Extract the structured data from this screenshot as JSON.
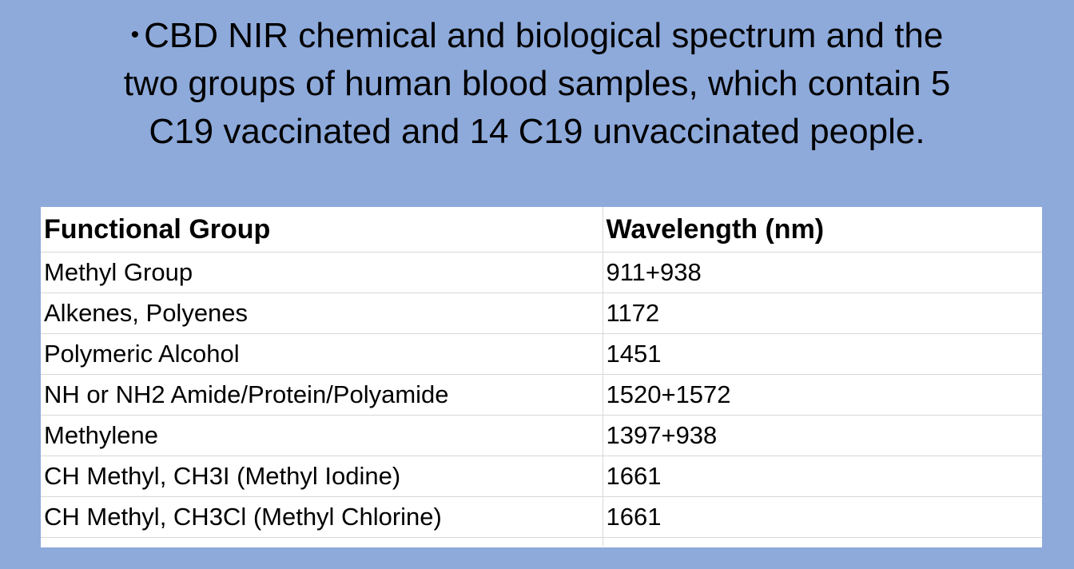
{
  "title": {
    "bullet": "•",
    "line1": "CBD NIR chemical and biological spectrum and the",
    "line2": "two groups of human blood samples, which contain 5",
    "line3": "C19 vaccinated and 14 C19 unvaccinated people."
  },
  "table": {
    "headers": [
      "Functional Group",
      "Wavelength (nm)"
    ],
    "rows": [
      [
        "Methyl Group",
        "911+938"
      ],
      [
        "Alkenes, Polyenes",
        "1172"
      ],
      [
        "Polymeric Alcohol",
        "1451"
      ],
      [
        "NH or NH2 Amide/Protein/Polyamide",
        "1520+1572"
      ],
      [
        "Methylene",
        "1397+938"
      ],
      [
        "CH Methyl, CH3I (Methyl Iodine)",
        "1661"
      ],
      [
        "CH Methyl, CH3Cl (Methyl Chlorine)",
        "1661"
      ]
    ]
  },
  "colors": {
    "background": "#8eaadb",
    "table_background": "#ffffff",
    "gridline": "#d8d8d8"
  }
}
